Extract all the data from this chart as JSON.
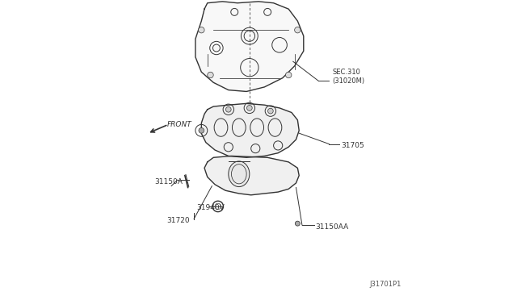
{
  "background_color": "#ffffff",
  "fig_width": 6.4,
  "fig_height": 3.72,
  "dpi": 100,
  "labels": {
    "sec310": {
      "text": "SEC.310\n(31020M)"
    },
    "31705": {
      "text": "31705"
    },
    "31150A": {
      "text": "31150A"
    },
    "31940V": {
      "text": "31940V"
    },
    "31720": {
      "text": "31720"
    },
    "31150AA": {
      "text": "31150AA"
    },
    "front": {
      "text": "FRONT"
    },
    "diagram_id": {
      "text": "J31701P1"
    }
  },
  "line_color": "#333333",
  "label_font_size": 6.5,
  "diagram_font_size": 6.0
}
